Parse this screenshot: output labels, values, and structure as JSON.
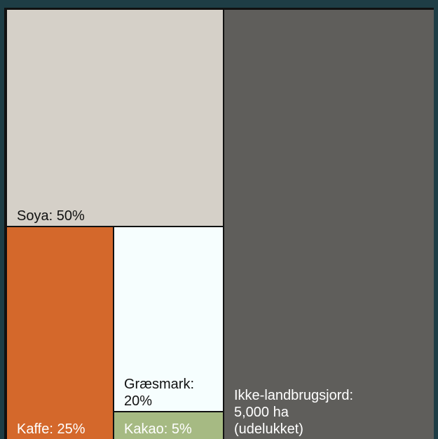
{
  "chart_data": {
    "type": "treemap",
    "title": "",
    "tiles": [
      {
        "name": "Soya",
        "label": "Soya: 50%",
        "value": 50,
        "group": "agricultural",
        "color": "#d5d0c8",
        "text_color": "#111111"
      },
      {
        "name": "Kaffe",
        "label": "Kaffe: 25%",
        "value": 25,
        "group": "agricultural",
        "color": "#d4682b",
        "text_color": "#ffffff"
      },
      {
        "name": "Græsmark",
        "label_lines": [
          "Græsmark:",
          "20%"
        ],
        "value": 20,
        "group": "agricultural",
        "color": "#f6fefe",
        "text_color": "#111111"
      },
      {
        "name": "Kakao",
        "label": "Kakao: 5%",
        "value": 5,
        "group": "agricultural",
        "color": "#a6ba83",
        "text_color": "#ffffff"
      },
      {
        "name": "Ikke-landbrugsjord",
        "label_lines": [
          "Ikke-landbrugsjord:",
          "5,000 ha",
          "(udelukket)"
        ],
        "value": 5000,
        "unit": "ha",
        "group": "excluded",
        "color": "#5f5e5b",
        "text_color": "#ffffff"
      }
    ],
    "background_color": "#1e3d45",
    "border_color": "#111111"
  }
}
